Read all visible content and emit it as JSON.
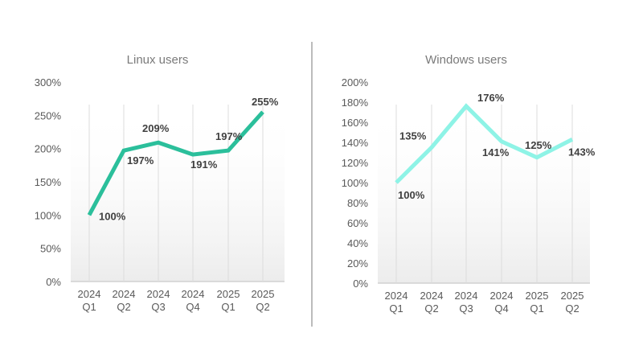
{
  "chart_data": [
    {
      "type": "line",
      "title": "Linux users",
      "categories": [
        [
          "2024",
          "Q1"
        ],
        [
          "2024",
          "Q2"
        ],
        [
          "2024",
          "Q3"
        ],
        [
          "2024",
          "Q4"
        ],
        [
          "2025",
          "Q1"
        ],
        [
          "2025",
          "Q2"
        ]
      ],
      "series": [
        {
          "values": [
            100,
            197,
            209,
            191,
            197,
            255
          ],
          "color": "#2bbf9b"
        }
      ],
      "data_labels": [
        "100%",
        "197%",
        "209%",
        "191%",
        "197%",
        "255%"
      ],
      "yticks": [
        "0%",
        "50%",
        "100%",
        "150%",
        "200%",
        "250%",
        "300%"
      ],
      "ylim": [
        0,
        300
      ],
      "ystep": 50,
      "grid": "vertical",
      "legend": "none"
    },
    {
      "type": "line",
      "title": "Windows users",
      "categories": [
        [
          "2024",
          "Q1"
        ],
        [
          "2024",
          "Q2"
        ],
        [
          "2024",
          "Q3"
        ],
        [
          "2024",
          "Q4"
        ],
        [
          "2025",
          "Q1"
        ],
        [
          "2025",
          "Q2"
        ]
      ],
      "series": [
        {
          "values": [
            100,
            135,
            176,
            141,
            125,
            143
          ],
          "color": "#8ef3e6"
        }
      ],
      "data_labels": [
        "100%",
        "135%",
        "176%",
        "141%",
        "125%",
        "143%"
      ],
      "yticks": [
        "0%",
        "20%",
        "40%",
        "60%",
        "80%",
        "100%",
        "120%",
        "140%",
        "160%",
        "180%",
        "200%"
      ],
      "ylim": [
        0,
        200
      ],
      "ystep": 20,
      "grid": "vertical",
      "legend": "none"
    }
  ]
}
